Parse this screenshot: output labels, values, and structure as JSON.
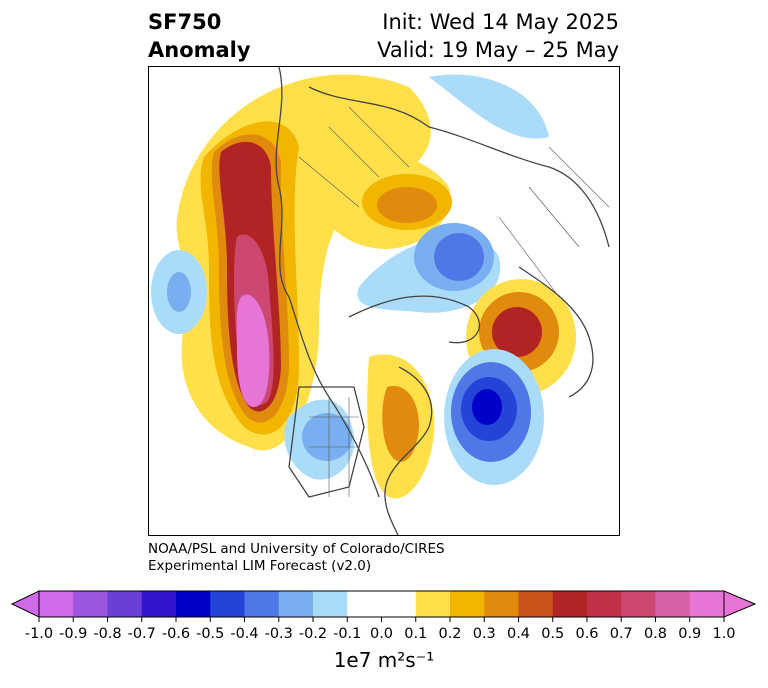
{
  "title": {
    "left_line1": "SF750",
    "left_line2": "Anomaly",
    "right_line1": "Init: Wed 14 May 2025",
    "right_line2": "Valid: 19 May – 25 May"
  },
  "credit": {
    "line1": "NOAA/PSL and University of Colorado/CIRES",
    "line2": "Experimental LIM Forecast (v2.0)"
  },
  "colorbar": {
    "units": "1e7 m²s⁻¹",
    "tick_labels": [
      "-1.0",
      "-0.9",
      "-0.8",
      "-0.7",
      "-0.6",
      "-0.5",
      "-0.4",
      "-0.3",
      "-0.2",
      "-0.1",
      "0.0",
      "0.1",
      "0.2",
      "0.3",
      "0.4",
      "0.5",
      "0.6",
      "0.7",
      "0.8",
      "0.9",
      "1.0"
    ],
    "colors": [
      "#d06ae8",
      "#9b55e0",
      "#6a3fd8",
      "#3414cf",
      "#0000c8",
      "#2444d8",
      "#4f78e6",
      "#79aef0",
      "#aadcfa",
      "#ffffff",
      "#ffffff",
      "#ffe04a",
      "#f2b600",
      "#e08a0e",
      "#c8541c",
      "#b22424",
      "#c23048",
      "#cc4870",
      "#d860a4",
      "#e675d6"
    ]
  },
  "map": {
    "region": "Northern Hemisphere polar stereographic",
    "anomalies": [
      {
        "name": "west-coast-positive",
        "peak": 1.0,
        "sign": "positive"
      },
      {
        "name": "russia-positive",
        "peak": 0.3,
        "sign": "positive"
      },
      {
        "name": "greenland-negative",
        "peak": -0.5,
        "sign": "negative"
      },
      {
        "name": "atlantic-negative",
        "peak": -0.6,
        "sign": "negative"
      },
      {
        "name": "scandinavia-positive",
        "peak": 0.6,
        "sign": "positive"
      },
      {
        "name": "great-lakes-positive",
        "peak": 0.3,
        "sign": "positive"
      },
      {
        "name": "us-west-negative",
        "peak": -0.3,
        "sign": "negative"
      },
      {
        "name": "north-pacific-negative",
        "peak": -0.2,
        "sign": "negative"
      }
    ]
  }
}
